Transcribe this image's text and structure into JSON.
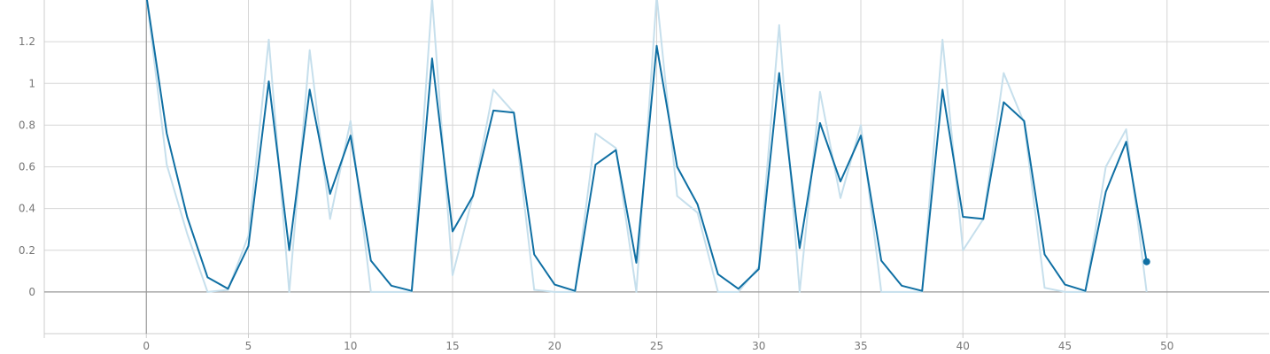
{
  "chart_data": {
    "type": "line",
    "title": "",
    "xlabel": "",
    "ylabel": "",
    "xlim": [
      -5,
      55
    ],
    "ylim": [
      -0.2,
      1.4
    ],
    "x_ticks": [
      0,
      5,
      10,
      15,
      20,
      25,
      30,
      35,
      40,
      45,
      50
    ],
    "x_tick_labels": [
      "0",
      "5",
      "10",
      "15",
      "20",
      "25",
      "30",
      "35",
      "40",
      "45",
      "50"
    ],
    "y_ticks": [
      0,
      0.2,
      0.4,
      0.6,
      0.8,
      1,
      1.2
    ],
    "y_tick_labels": [
      "0",
      "0.2",
      "0.4",
      "0.6",
      "0.8",
      "1",
      "1.2"
    ],
    "grid": true,
    "legend": "none",
    "colors": {
      "raw": "#c6dfec",
      "smoothed": "#0f6fa3",
      "axis": "#999999",
      "grid": "#d6d6d6"
    },
    "series": [
      {
        "role": "raw",
        "x": [
          0,
          1,
          2,
          3,
          4,
          5,
          6,
          7,
          8,
          9,
          10,
          11,
          12,
          13,
          14,
          15,
          16,
          17,
          18,
          19,
          20,
          21,
          22,
          23,
          24,
          25,
          26,
          27,
          28,
          29,
          30,
          31,
          32,
          33,
          34,
          35,
          36,
          37,
          38,
          39,
          40,
          41,
          42,
          43,
          44,
          45,
          46,
          47,
          48,
          49
        ],
        "values": [
          1.42,
          0.61,
          0.28,
          0.0,
          0.01,
          0.27,
          1.21,
          0.0,
          1.16,
          0.35,
          0.82,
          0.0,
          0.0,
          0.0,
          1.41,
          0.08,
          0.46,
          0.97,
          0.86,
          0.01,
          0.0,
          0.0,
          0.76,
          0.69,
          0.0,
          1.42,
          0.46,
          0.38,
          0.0,
          0.0,
          0.12,
          1.28,
          0.0,
          0.96,
          0.45,
          0.8,
          0.0,
          0.0,
          0.0,
          1.21,
          0.2,
          0.35,
          1.05,
          0.81,
          0.02,
          0.0,
          0.0,
          0.6,
          0.78,
          0.0
        ]
      },
      {
        "role": "smoothed",
        "x": [
          0,
          1,
          2,
          3,
          4,
          5,
          6,
          7,
          8,
          9,
          10,
          11,
          12,
          13,
          14,
          15,
          16,
          17,
          18,
          19,
          20,
          21,
          22,
          23,
          24,
          25,
          26,
          27,
          28,
          29,
          30,
          31,
          32,
          33,
          34,
          35,
          36,
          37,
          38,
          39,
          40,
          41,
          42,
          43,
          44,
          45,
          46,
          47,
          48,
          49
        ],
        "values": [
          1.42,
          0.76,
          0.36,
          0.07,
          0.015,
          0.22,
          1.01,
          0.2,
          0.97,
          0.47,
          0.75,
          0.15,
          0.03,
          0.005,
          1.12,
          0.29,
          0.46,
          0.87,
          0.86,
          0.18,
          0.035,
          0.005,
          0.61,
          0.68,
          0.14,
          1.18,
          0.6,
          0.42,
          0.085,
          0.015,
          0.11,
          1.05,
          0.21,
          0.81,
          0.53,
          0.75,
          0.15,
          0.03,
          0.005,
          0.97,
          0.36,
          0.35,
          0.91,
          0.82,
          0.18,
          0.035,
          0.005,
          0.48,
          0.72,
          0.145
        ]
      }
    ]
  }
}
